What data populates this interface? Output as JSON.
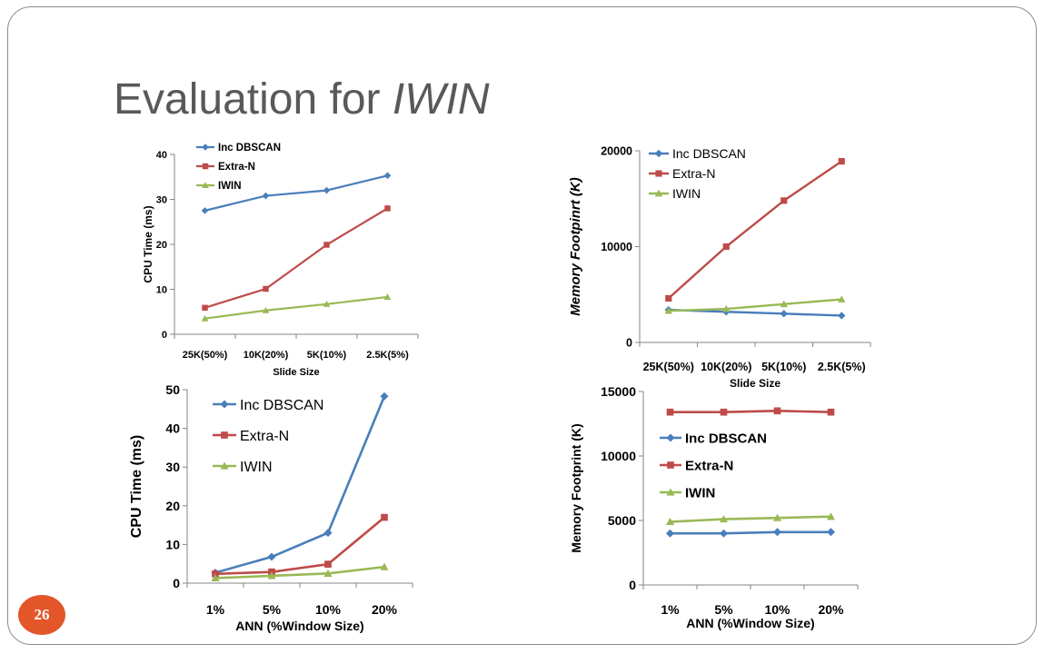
{
  "slide": {
    "title_plain": "Evaluation for ",
    "title_italic": "IWIN",
    "page_number": "26"
  },
  "colors": {
    "inc_dbscan": "#4a7ebb",
    "extra_n": "#be4b48",
    "iwin": "#98b954"
  },
  "chart_data": [
    {
      "type": "line",
      "title": "",
      "xlabel": "Slide Size",
      "ylabel": "CPU Time (ms)",
      "categories": [
        "25K(50%)",
        "10K(20%)",
        "5K(10%)",
        "2.5K(5%)"
      ],
      "ylim": [
        0,
        40
      ],
      "yticks": [
        0,
        10,
        20,
        30,
        40
      ],
      "legend": "top-left",
      "series": [
        {
          "name": "Inc DBSCAN",
          "values": [
            27.5,
            30.8,
            32,
            35.3
          ]
        },
        {
          "name": "Extra-N",
          "values": [
            5.9,
            10.1,
            19.9,
            28
          ]
        },
        {
          "name": "IWIN",
          "values": [
            3.5,
            5.3,
            6.7,
            8.3
          ]
        }
      ]
    },
    {
      "type": "line",
      "title": "",
      "xlabel": "Slide Size",
      "ylabel": "Memory  Footpinrt (K)",
      "categories": [
        "25K(50%)",
        "10K(20%)",
        "5K(10%)",
        "2.5K(5%)"
      ],
      "ylim": [
        0,
        20000
      ],
      "yticks": [
        0,
        10000,
        20000
      ],
      "legend": "top-left",
      "series": [
        {
          "name": "Inc DBSCAN",
          "values": [
            3400,
            3200,
            3000,
            2800
          ]
        },
        {
          "name": "Extra-N",
          "values": [
            4600,
            10000,
            14800,
            18900
          ]
        },
        {
          "name": "IWIN",
          "values": [
            3300,
            3500,
            4000,
            4500
          ]
        }
      ]
    },
    {
      "type": "line",
      "title": "",
      "xlabel": "ANN (%Window Size)",
      "ylabel": "CPU Time (ms)",
      "categories": [
        "1%",
        "5%",
        "10%",
        "20%"
      ],
      "ylim": [
        0,
        50
      ],
      "yticks": [
        0,
        10,
        20,
        30,
        40,
        50
      ],
      "legend": "top-left",
      "series": [
        {
          "name": "Inc DBSCAN",
          "values": [
            2.7,
            6.8,
            13,
            48.3
          ]
        },
        {
          "name": "Extra-N",
          "values": [
            2.4,
            2.9,
            4.9,
            17
          ]
        },
        {
          "name": "IWIN",
          "values": [
            1.3,
            1.9,
            2.5,
            4.2
          ]
        }
      ]
    },
    {
      "type": "line",
      "title": "",
      "xlabel": "ANN (%Window Size)",
      "ylabel": "Memory Footprint (K)",
      "categories": [
        "1%",
        "5%",
        "10%",
        "20%"
      ],
      "ylim": [
        0,
        15000
      ],
      "yticks": [
        0,
        5000,
        10000,
        15000
      ],
      "legend": "center-left",
      "series": [
        {
          "name": "Inc DBSCAN",
          "values": [
            4000,
            4000,
            4100,
            4100
          ]
        },
        {
          "name": "Extra-N",
          "values": [
            13400,
            13400,
            13500,
            13400
          ]
        },
        {
          "name": "IWIN",
          "values": [
            4900,
            5100,
            5200,
            5300
          ]
        }
      ]
    }
  ]
}
